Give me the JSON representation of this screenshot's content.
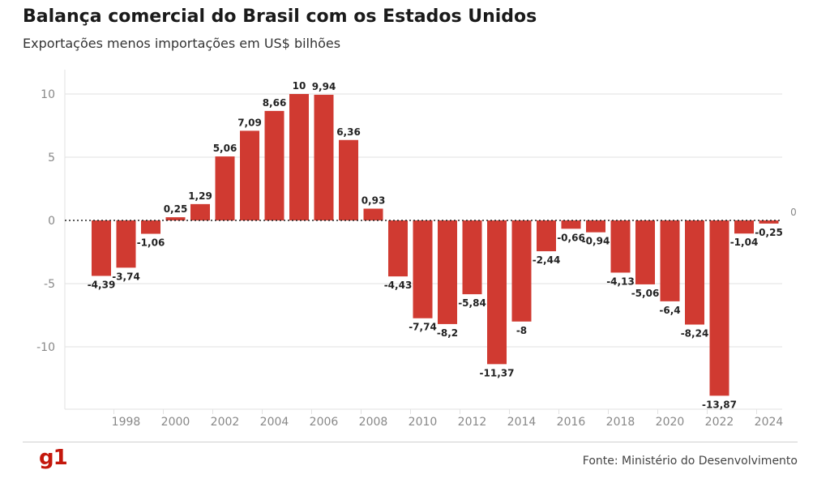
{
  "header": {
    "title": "Balança comercial do Brasil com os Estados Unidos",
    "subtitle": "Exportações menos importações em US$ bilhões"
  },
  "footer": {
    "logo": "g1",
    "source": "Fonte: Ministério do Desenvolvimento"
  },
  "colors": {
    "bar": "#d03a31",
    "grid": "#e2e2e2",
    "axis_text": "#888888",
    "label_text": "#222222"
  },
  "chart_data": {
    "type": "bar",
    "title": "Balança comercial do Brasil com os Estados Unidos",
    "subtitle": "Exportações menos importações em US$ bilhões",
    "xlabel": "",
    "ylabel": "",
    "ylim": [
      -15,
      12
    ],
    "yticks": [
      10,
      5,
      0,
      -5,
      -10
    ],
    "grid": true,
    "categories": [
      1997,
      1998,
      1999,
      2000,
      2001,
      2002,
      2003,
      2004,
      2005,
      2006,
      2007,
      2008,
      2009,
      2010,
      2011,
      2012,
      2013,
      2014,
      2015,
      2016,
      2017,
      2018,
      2019,
      2020,
      2021,
      2022,
      2023,
      2024,
      2025
    ],
    "xtick_labels": [
      "1998",
      "2000",
      "2002",
      "2004",
      "2006",
      "2008",
      "2010",
      "2012",
      "2014",
      "2016",
      "2018",
      "2020",
      "2022",
      "2024"
    ],
    "values": [
      -4.39,
      -3.74,
      -1.06,
      0.25,
      1.29,
      5.06,
      7.09,
      8.66,
      10,
      9.94,
      6.36,
      0.93,
      -4.43,
      -7.74,
      -8.2,
      -5.84,
      -11.37,
      -8,
      -2.44,
      -0.66,
      -0.94,
      -4.13,
      -5.06,
      -6.4,
      -8.24,
      -13.87,
      -1.04,
      -0.25,
      0
    ],
    "value_labels": [
      "-4,39",
      "-3,74",
      "-1,06",
      "0,25",
      "1,29",
      "5,06",
      "7,09",
      "8,66",
      "10",
      "9,94",
      "6,36",
      "0,93",
      "-4,43",
      "-7,74",
      "-8,2",
      "-5,84",
      "-11,37",
      "-8",
      "-2,44",
      "-0,66",
      "-0,94",
      "-4,13",
      "-5,06",
      "-6,4",
      "-8,24",
      "-13,87",
      "-1,04",
      "-0,25",
      "0"
    ]
  }
}
